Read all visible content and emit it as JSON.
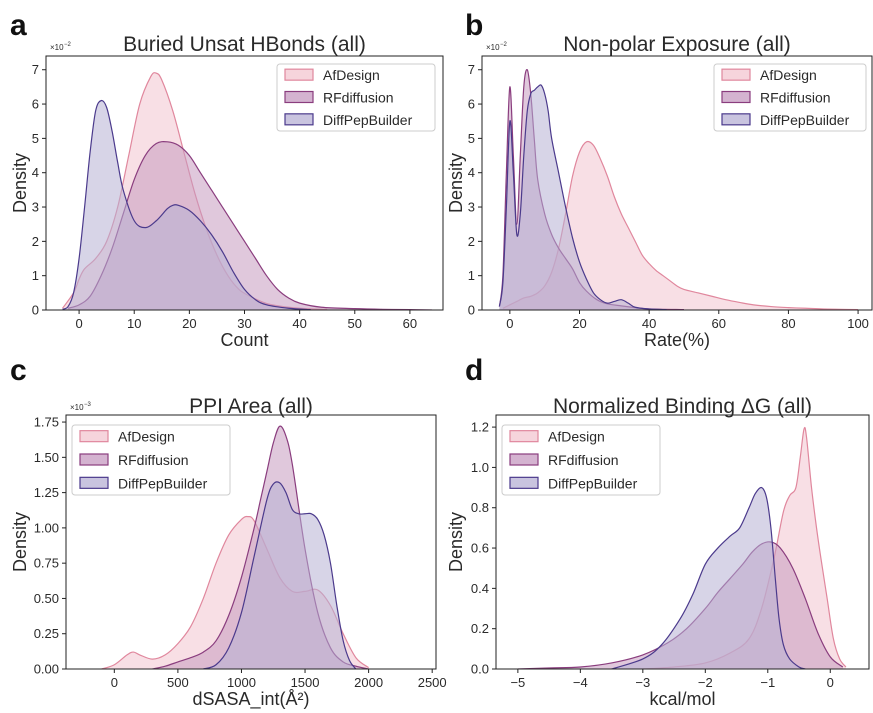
{
  "chart_data": [
    {
      "panel": "a",
      "type": "area",
      "title": "Buried Unsat HBonds (all)",
      "xlabel": "Count",
      "ylabel": "Density",
      "multiplier": {
        "base": "×10",
        "exp": "−2"
      },
      "xlim": [
        -6,
        66
      ],
      "ylim": [
        0,
        7.4
      ],
      "xticks": [
        0,
        10,
        20,
        30,
        40,
        50,
        60
      ],
      "yticks": [
        0,
        1,
        2,
        3,
        4,
        5,
        6,
        7
      ],
      "grid": false,
      "legend": "top-right",
      "series": [
        {
          "name": "AfDesign",
          "color": "#e0879d",
          "fill": "#f3c5d0",
          "x": [
            -3,
            -1,
            0,
            1,
            3,
            5,
            7,
            9,
            11,
            13,
            14,
            15,
            17,
            19,
            21,
            23,
            25,
            27,
            29,
            31,
            33,
            35,
            40,
            45
          ],
          "y": [
            0.05,
            0.5,
            0.9,
            1.2,
            1.5,
            2.0,
            3.0,
            4.5,
            6.0,
            6.8,
            6.9,
            6.7,
            5.8,
            4.6,
            3.4,
            2.4,
            1.6,
            1.0,
            0.6,
            0.4,
            0.25,
            0.15,
            0.05,
            0.02
          ]
        },
        {
          "name": "RFdiffusion",
          "color": "#8a3d7e",
          "fill": "#c69ac0",
          "x": [
            -2,
            0,
            2,
            4,
            6,
            8,
            10,
            12,
            14,
            16,
            18,
            20,
            22,
            24,
            26,
            28,
            30,
            32,
            34,
            36,
            38,
            40,
            44,
            50,
            55,
            60,
            64
          ],
          "y": [
            0.05,
            0.15,
            0.4,
            1.0,
            1.8,
            2.8,
            3.8,
            4.5,
            4.85,
            4.9,
            4.8,
            4.5,
            4.0,
            3.5,
            3.0,
            2.5,
            2.0,
            1.5,
            1.0,
            0.6,
            0.35,
            0.2,
            0.08,
            0.04,
            0.02,
            0.01,
            0.0
          ]
        },
        {
          "name": "DiffPepBuilder",
          "color": "#4b3a8c",
          "fill": "#b7b0d4",
          "x": [
            -3,
            -2,
            -1,
            0,
            1,
            2,
            3,
            4,
            5,
            6,
            7,
            8,
            10,
            12,
            14,
            16,
            17,
            18,
            20,
            22,
            24,
            26,
            28,
            30,
            32,
            34,
            38,
            42
          ],
          "y": [
            0.02,
            0.1,
            0.5,
            1.5,
            3.0,
            4.6,
            5.8,
            6.1,
            5.9,
            5.2,
            4.3,
            3.5,
            2.6,
            2.4,
            2.6,
            2.95,
            3.05,
            3.05,
            2.9,
            2.6,
            2.2,
            1.7,
            1.1,
            0.6,
            0.3,
            0.15,
            0.05,
            0.01
          ]
        }
      ]
    },
    {
      "panel": "b",
      "type": "area",
      "title": "Non-polar Exposure (all)",
      "xlabel": "Rate(%)",
      "ylabel": "Density",
      "multiplier": {
        "base": "×10",
        "exp": "−2"
      },
      "xlim": [
        -8,
        104
      ],
      "ylim": [
        0,
        7.4
      ],
      "xticks": [
        0,
        20,
        40,
        60,
        80,
        100
      ],
      "yticks": [
        0,
        1,
        2,
        3,
        4,
        5,
        6,
        7
      ],
      "grid": false,
      "legend": "top-right",
      "series": [
        {
          "name": "AfDesign",
          "color": "#e0879d",
          "fill": "#f3c5d0",
          "x": [
            -2,
            0,
            2,
            4,
            6,
            8,
            10,
            12,
            14,
            16,
            18,
            20,
            22,
            24,
            26,
            28,
            30,
            32,
            34,
            36,
            38,
            40,
            42,
            44,
            46,
            48,
            50,
            54,
            58,
            62,
            66,
            70,
            75,
            80,
            85,
            90,
            95,
            100
          ],
          "y": [
            0.05,
            0.15,
            0.25,
            0.35,
            0.4,
            0.5,
            0.7,
            1.1,
            1.8,
            2.8,
            3.9,
            4.6,
            4.9,
            4.8,
            4.4,
            3.9,
            3.3,
            2.8,
            2.4,
            2.0,
            1.6,
            1.35,
            1.15,
            1.0,
            0.85,
            0.7,
            0.6,
            0.5,
            0.4,
            0.3,
            0.22,
            0.15,
            0.1,
            0.07,
            0.05,
            0.03,
            0.02,
            0.01
          ]
        },
        {
          "name": "RFdiffusion",
          "color": "#8a3d7e",
          "fill": "#c69ac0",
          "x": [
            -3,
            -2,
            -1,
            0,
            1,
            2,
            3,
            4,
            5,
            6,
            7,
            8,
            10,
            12,
            14,
            16,
            18,
            20,
            22,
            25,
            28,
            32,
            36,
            40,
            50
          ],
          "y": [
            0.1,
            1.0,
            4.0,
            6.5,
            4.5,
            2.5,
            4.5,
            6.5,
            7.0,
            6.3,
            5.0,
            3.8,
            2.8,
            2.2,
            1.8,
            1.5,
            1.2,
            0.8,
            0.55,
            0.3,
            0.18,
            0.12,
            0.07,
            0.03,
            0.01
          ]
        },
        {
          "name": "DiffPepBuilder",
          "color": "#4b3a8c",
          "fill": "#b7b0d4",
          "x": [
            -3,
            -2,
            -1,
            0,
            1,
            2,
            3,
            4,
            5,
            6,
            7,
            8,
            9,
            10,
            11,
            12,
            14,
            16,
            18,
            20,
            22,
            24,
            26,
            28,
            30,
            32,
            34,
            36,
            40,
            45
          ],
          "y": [
            0.1,
            0.8,
            3.0,
            5.5,
            4.0,
            2.2,
            2.8,
            4.5,
            5.8,
            6.3,
            6.4,
            6.5,
            6.55,
            6.3,
            5.8,
            5.0,
            4.0,
            3.0,
            2.1,
            1.4,
            0.9,
            0.5,
            0.3,
            0.2,
            0.25,
            0.3,
            0.2,
            0.08,
            0.03,
            0.01
          ]
        }
      ]
    },
    {
      "panel": "c",
      "type": "area",
      "title": "PPI Area (all)",
      "xlabel": "dSASA_int(Å²)",
      "ylabel": "Density",
      "multiplier": {
        "base": "×10",
        "exp": "−3"
      },
      "xlim": [
        -380,
        2530
      ],
      "ylim": [
        0,
        1.8
      ],
      "xticks": [
        0,
        500,
        1000,
        1500,
        2000,
        2500
      ],
      "yticks": [
        "0.00",
        "0.25",
        "0.50",
        "0.75",
        "1.00",
        "1.25",
        "1.50",
        "1.75"
      ],
      "grid": false,
      "legend": "top-left",
      "series": [
        {
          "name": "AfDesign",
          "color": "#e0879d",
          "fill": "#f3c5d0",
          "x": [
            -100,
            0,
            100,
            150,
            200,
            300,
            400,
            500,
            600,
            700,
            800,
            900,
            1000,
            1050,
            1100,
            1200,
            1300,
            1400,
            1500,
            1600,
            1700,
            1800,
            1900,
            2000
          ],
          "y": [
            0.0,
            0.03,
            0.1,
            0.12,
            0.1,
            0.07,
            0.1,
            0.18,
            0.3,
            0.5,
            0.75,
            0.95,
            1.06,
            1.08,
            1.05,
            0.85,
            0.65,
            0.55,
            0.55,
            0.56,
            0.45,
            0.25,
            0.08,
            0.01
          ]
        },
        {
          "name": "RFdiffusion",
          "color": "#8a3d7e",
          "fill": "#c69ac0",
          "x": [
            300,
            400,
            500,
            600,
            700,
            800,
            900,
            1000,
            1100,
            1150,
            1200,
            1250,
            1300,
            1350,
            1400,
            1500,
            1600,
            1700,
            1800,
            1900,
            2000
          ],
          "y": [
            0.0,
            0.02,
            0.05,
            0.08,
            0.12,
            0.2,
            0.38,
            0.65,
            1.0,
            1.2,
            1.4,
            1.6,
            1.72,
            1.65,
            1.45,
            0.85,
            0.4,
            0.15,
            0.05,
            0.02,
            0.0
          ]
        },
        {
          "name": "DiffPepBuilder",
          "color": "#4b3a8c",
          "fill": "#b7b0d4",
          "x": [
            700,
            800,
            900,
            1000,
            1100,
            1200,
            1250,
            1300,
            1350,
            1400,
            1450,
            1500,
            1550,
            1600,
            1650,
            1700,
            1750,
            1800,
            1850,
            1900
          ],
          "y": [
            0.0,
            0.03,
            0.15,
            0.4,
            0.8,
            1.2,
            1.31,
            1.32,
            1.25,
            1.13,
            1.1,
            1.1,
            1.1,
            1.06,
            0.95,
            0.75,
            0.45,
            0.2,
            0.06,
            0.0
          ]
        }
      ]
    },
    {
      "panel": "d",
      "type": "area",
      "title": "Normalized Binding ΔG (all)",
      "xlabel": "kcal/mol",
      "ylabel": "Density",
      "xlim": [
        -5.35,
        0.62
      ],
      "ylim": [
        0,
        1.26
      ],
      "xticks": [
        "−5",
        "−4",
        "−3",
        "−2",
        "−1",
        "0"
      ],
      "yticks": [
        "0.0",
        "0.2",
        "0.4",
        "0.6",
        "0.8",
        "1.0",
        "1.2"
      ],
      "grid": false,
      "legend": "top-left",
      "series": [
        {
          "name": "AfDesign",
          "color": "#e0879d",
          "fill": "#f3c5d0",
          "x": [
            -3.0,
            -2.5,
            -2.0,
            -1.6,
            -1.3,
            -1.1,
            -0.9,
            -0.75,
            -0.65,
            -0.55,
            -0.48,
            -0.42,
            -0.38,
            -0.3,
            -0.22,
            -0.15,
            -0.05,
            0.05,
            0.15,
            0.25
          ],
          "y": [
            0.0,
            0.01,
            0.03,
            0.08,
            0.15,
            0.3,
            0.55,
            0.78,
            0.86,
            0.9,
            1.05,
            1.19,
            1.15,
            0.9,
            0.7,
            0.55,
            0.35,
            0.15,
            0.05,
            0.01
          ]
        },
        {
          "name": "RFdiffusion",
          "color": "#8a3d7e",
          "fill": "#c69ac0",
          "x": [
            -5.0,
            -4.5,
            -4.0,
            -3.5,
            -3.0,
            -2.6,
            -2.3,
            -2.0,
            -1.8,
            -1.6,
            -1.4,
            -1.25,
            -1.1,
            -0.95,
            -0.8,
            -0.6,
            -0.4,
            -0.2,
            0.0,
            0.2
          ],
          "y": [
            0.0,
            0.005,
            0.01,
            0.03,
            0.07,
            0.13,
            0.2,
            0.3,
            0.38,
            0.45,
            0.52,
            0.58,
            0.62,
            0.63,
            0.6,
            0.5,
            0.35,
            0.18,
            0.06,
            0.01
          ]
        },
        {
          "name": "DiffPepBuilder",
          "color": "#4b3a8c",
          "fill": "#b7b0d4",
          "x": [
            -3.5,
            -3.0,
            -2.7,
            -2.4,
            -2.2,
            -2.0,
            -1.8,
            -1.6,
            -1.45,
            -1.3,
            -1.2,
            -1.1,
            -1.02,
            -0.95,
            -0.88,
            -0.82,
            -0.75,
            -0.65,
            -0.5,
            -0.4
          ],
          "y": [
            0.0,
            0.05,
            0.12,
            0.25,
            0.37,
            0.52,
            0.6,
            0.66,
            0.7,
            0.8,
            0.87,
            0.9,
            0.85,
            0.7,
            0.45,
            0.25,
            0.12,
            0.05,
            0.01,
            0.0
          ]
        }
      ]
    }
  ]
}
